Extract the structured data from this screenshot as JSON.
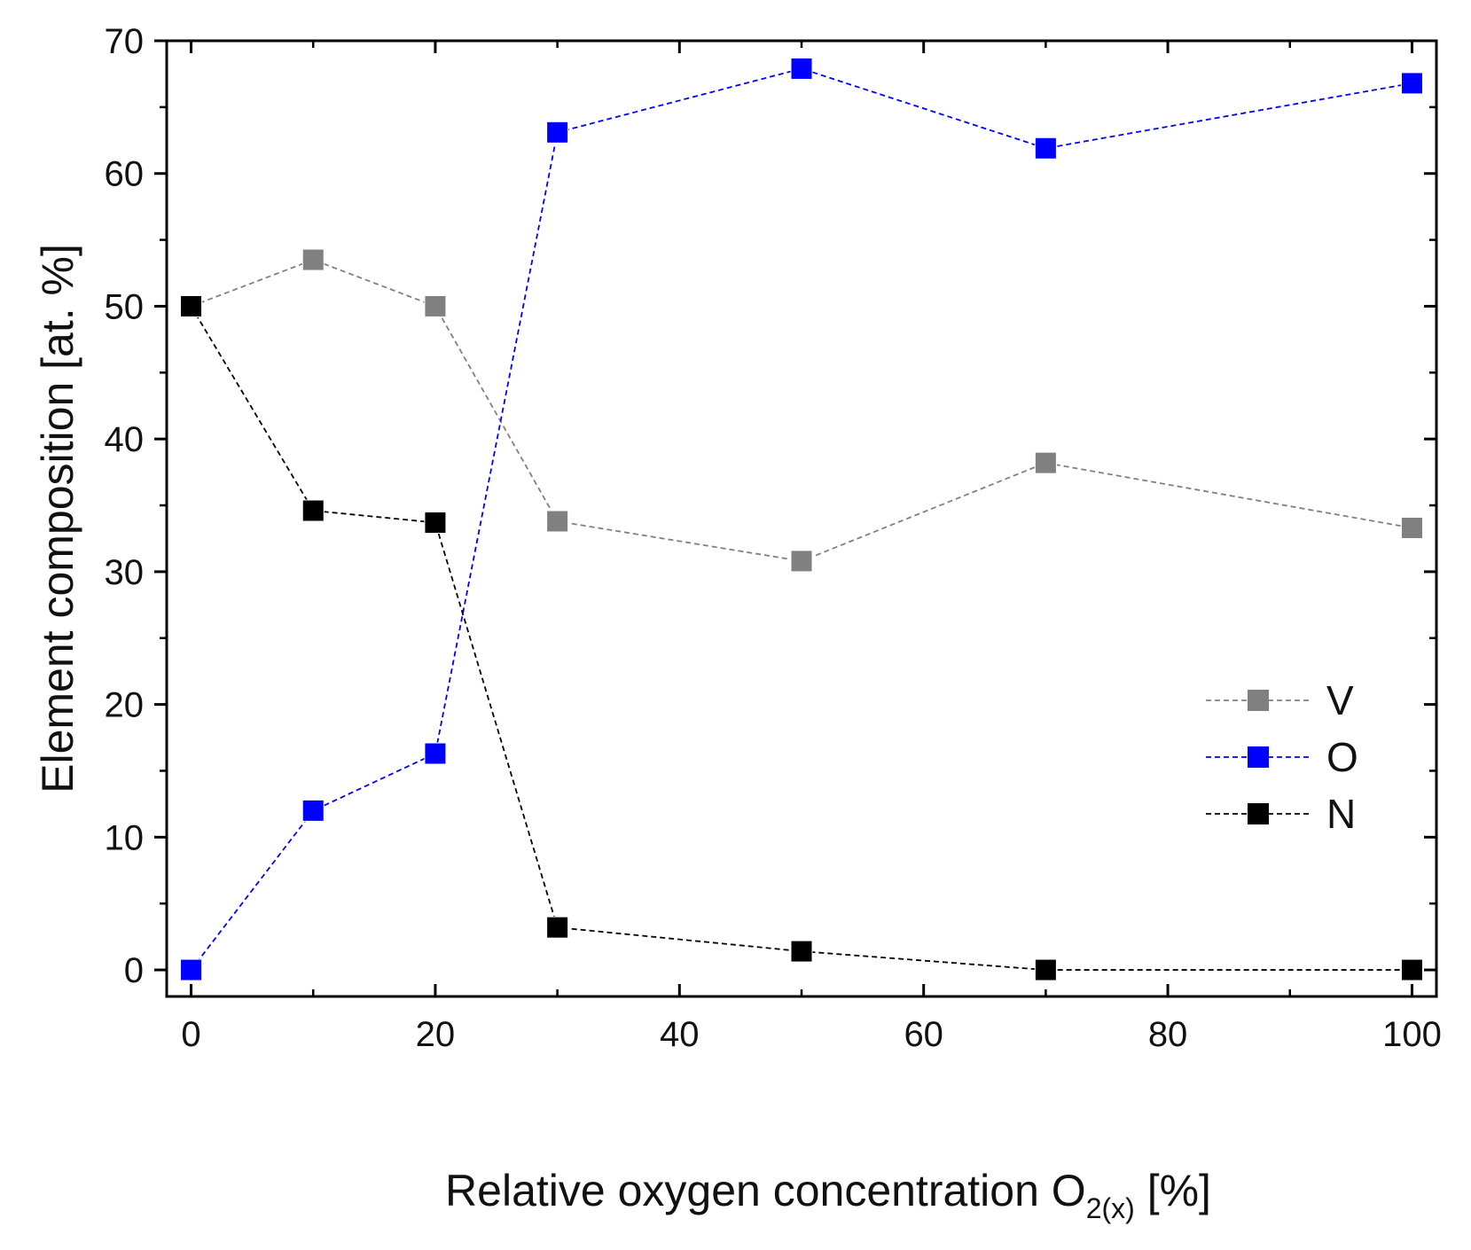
{
  "chart_data": {
    "type": "line",
    "title": "",
    "xlabel": {
      "main": "Relative oxygen concentration O",
      "subscript": "2(x)",
      "suffix": " [%]"
    },
    "ylabel": "Element composition [at. %]",
    "xlim": [
      -2,
      102
    ],
    "ylim": [
      -2,
      70
    ],
    "xticks": [
      0,
      20,
      40,
      60,
      80,
      100
    ],
    "yticks": [
      0,
      10,
      20,
      30,
      40,
      50,
      60,
      70
    ],
    "xminor": [
      10,
      30,
      50,
      70,
      90
    ],
    "yminor": [
      5,
      15,
      25,
      35,
      45,
      55,
      65
    ],
    "grid": false,
    "legend_position": "right",
    "x": [
      0,
      10,
      20,
      30,
      50,
      70,
      100
    ],
    "series": [
      {
        "name": "V",
        "color": "#808080",
        "values": [
          50.0,
          53.5,
          50.0,
          33.8,
          30.8,
          38.2,
          33.3
        ]
      },
      {
        "name": "O",
        "color": "#0000ff",
        "values": [
          0.0,
          12.0,
          16.3,
          63.1,
          67.9,
          61.9,
          66.8
        ]
      },
      {
        "name": "N",
        "color": "#000000",
        "values": [
          50.0,
          34.6,
          33.7,
          3.2,
          1.4,
          0.0,
          0.0
        ]
      }
    ]
  }
}
